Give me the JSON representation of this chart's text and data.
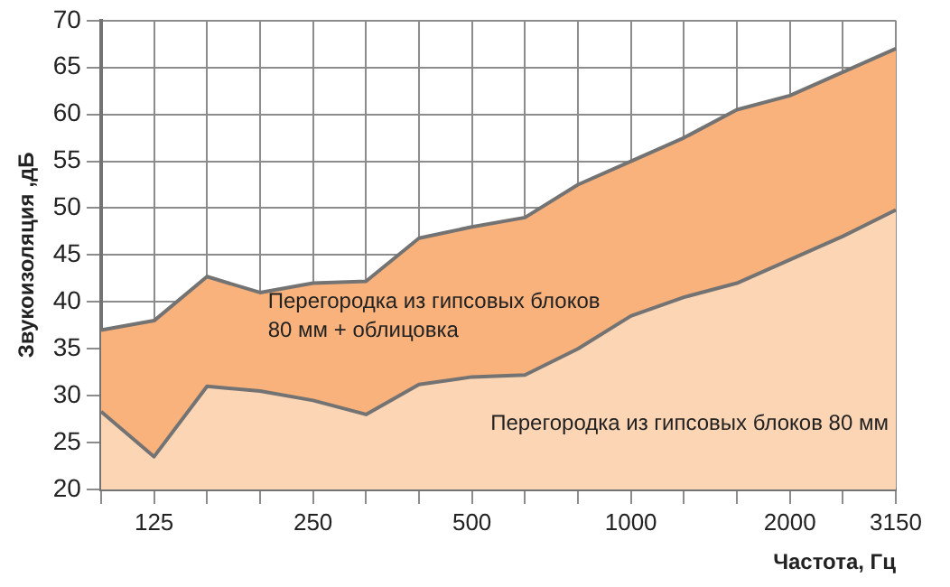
{
  "chart_data": {
    "type": "area",
    "xlabel": "Частота, Гц",
    "ylabel": "Звукоизоляция ,дБ",
    "categories": [
      null,
      "125",
      null,
      null,
      "250",
      null,
      null,
      "500",
      null,
      null,
      "1000",
      null,
      null,
      "2000",
      null,
      "3150"
    ],
    "series": [
      {
        "name": "Перегородка из гипсовых блоков 80 мм + облицовка",
        "color": "#f9b27c",
        "values": [
          37,
          38,
          42.7,
          41,
          42,
          42.2,
          46.8,
          48,
          49,
          52.5,
          55,
          57.5,
          60.5,
          62,
          64.5,
          67
        ]
      },
      {
        "name": "Перегородка из гипсовых блоков 80 мм",
        "color": "#fcd5b5",
        "values": [
          28.3,
          23.5,
          31,
          30.5,
          29.5,
          28,
          31.2,
          32,
          32.2,
          35,
          38.5,
          40.5,
          42,
          44.5,
          47,
          49.8
        ]
      }
    ],
    "ylim": [
      20,
      70
    ],
    "yticks": [
      20,
      25,
      30,
      35,
      40,
      45,
      50,
      55,
      60,
      65,
      70
    ],
    "grid": true,
    "legend": false,
    "marker": "none"
  }
}
